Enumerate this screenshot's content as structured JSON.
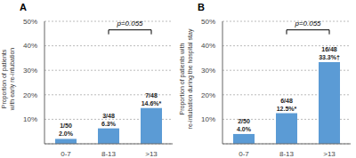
{
  "chart_data": [
    {
      "type": "bar",
      "title": "A",
      "categories": [
        "0-7",
        "8-13",
        ">13"
      ],
      "values": [
        2.0,
        6.3,
        14.6
      ],
      "data_labels": true,
      "value_labels": [
        "2.0%",
        "6.3%",
        "14.6%*"
      ],
      "count_labels": [
        "1/50",
        "3/48",
        "7/48"
      ],
      "color": "#5b9bd5",
      "ylabel": "Proportion of patients\nwith early re-intubation",
      "ylim": [
        0,
        50
      ],
      "yticks": [
        {
          "value": 10,
          "label": "10%"
        },
        {
          "value": 20,
          "label": "20%"
        },
        {
          "value": 30,
          "label": "30%"
        },
        {
          "value": 40,
          "label": "40%"
        },
        {
          "value": 50,
          "label": "50%"
        }
      ],
      "grid": true,
      "annotations": [
        {
          "type": "bracket",
          "from": "8-13",
          "to": ">13",
          "y": 46.5,
          "text": "p=0.055"
        }
      ]
    },
    {
      "type": "bar",
      "title": "B",
      "categories": [
        "0-7",
        "8-13",
        ">13"
      ],
      "values": [
        4.0,
        12.5,
        33.3
      ],
      "data_labels": true,
      "value_labels": [
        "4.0%",
        "12.5%*",
        "33.3%†"
      ],
      "count_labels": [
        "2/50",
        "6/48",
        "16/48"
      ],
      "color": "#5b9bd5",
      "ylabel": "Proportion of patients with\nre-intubation during the hospital stay",
      "ylim": [
        0,
        50
      ],
      "yticks": [
        {
          "value": 10,
          "label": "10%"
        },
        {
          "value": 20,
          "label": "20%"
        },
        {
          "value": 30,
          "label": "30%"
        },
        {
          "value": 40,
          "label": "40%"
        },
        {
          "value": 50,
          "label": "50%"
        }
      ],
      "grid": true,
      "annotations": [
        {
          "type": "bracket",
          "from": "8-13",
          "to": ">13",
          "y": 46.5,
          "text": "p=0.055"
        }
      ]
    }
  ]
}
